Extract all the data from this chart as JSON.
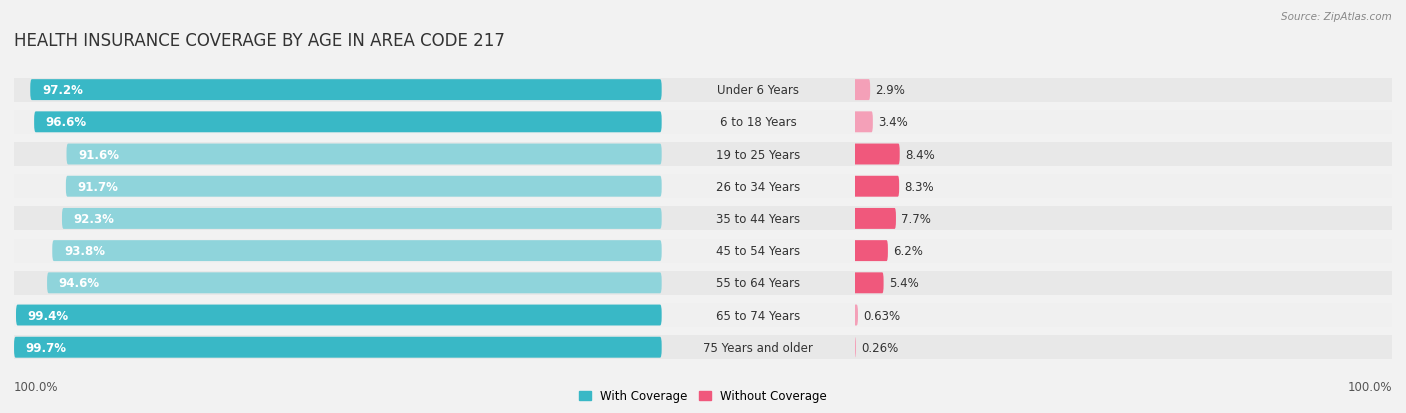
{
  "title": "HEALTH INSURANCE COVERAGE BY AGE IN AREA CODE 217",
  "source": "Source: ZipAtlas.com",
  "categories": [
    "Under 6 Years",
    "6 to 18 Years",
    "19 to 25 Years",
    "26 to 34 Years",
    "35 to 44 Years",
    "45 to 54 Years",
    "55 to 64 Years",
    "65 to 74 Years",
    "75 Years and older"
  ],
  "with_coverage": [
    97.2,
    96.6,
    91.6,
    91.7,
    92.3,
    93.8,
    94.6,
    99.4,
    99.7
  ],
  "without_coverage": [
    2.9,
    3.4,
    8.4,
    8.3,
    7.7,
    6.2,
    5.4,
    0.63,
    0.26
  ],
  "with_coverage_labels": [
    "97.2%",
    "96.6%",
    "91.6%",
    "91.7%",
    "92.3%",
    "93.8%",
    "94.6%",
    "99.4%",
    "99.7%"
  ],
  "without_coverage_labels": [
    "2.9%",
    "3.4%",
    "8.4%",
    "8.3%",
    "7.7%",
    "6.2%",
    "5.4%",
    "0.63%",
    "0.26%"
  ],
  "with_colors": [
    "#39b8c6",
    "#39b8c6",
    "#8fd4db",
    "#8fd4db",
    "#8fd4db",
    "#8fd4db",
    "#8fd4db",
    "#39b8c6",
    "#39b8c6"
  ],
  "without_colors": [
    "#f4a0b8",
    "#f4a0b8",
    "#f0587c",
    "#f0587c",
    "#f0587c",
    "#f0587c",
    "#f0587c",
    "#f4a0b8",
    "#f4a0b8"
  ],
  "color_with_legend": "#39b8c6",
  "color_without_legend": "#f0587c",
  "row_bg_colors": [
    "#e8e8e8",
    "#f0f0f0",
    "#e8e8e8",
    "#f0f0f0",
    "#e8e8e8",
    "#f0f0f0",
    "#e8e8e8",
    "#f0f0f0",
    "#e8e8e8"
  ],
  "background_color": "#f2f2f2",
  "axis_label": "100.0%",
  "legend_with": "With Coverage",
  "legend_without": "Without Coverage",
  "title_fontsize": 12,
  "label_fontsize": 8.5,
  "category_fontsize": 8.5
}
